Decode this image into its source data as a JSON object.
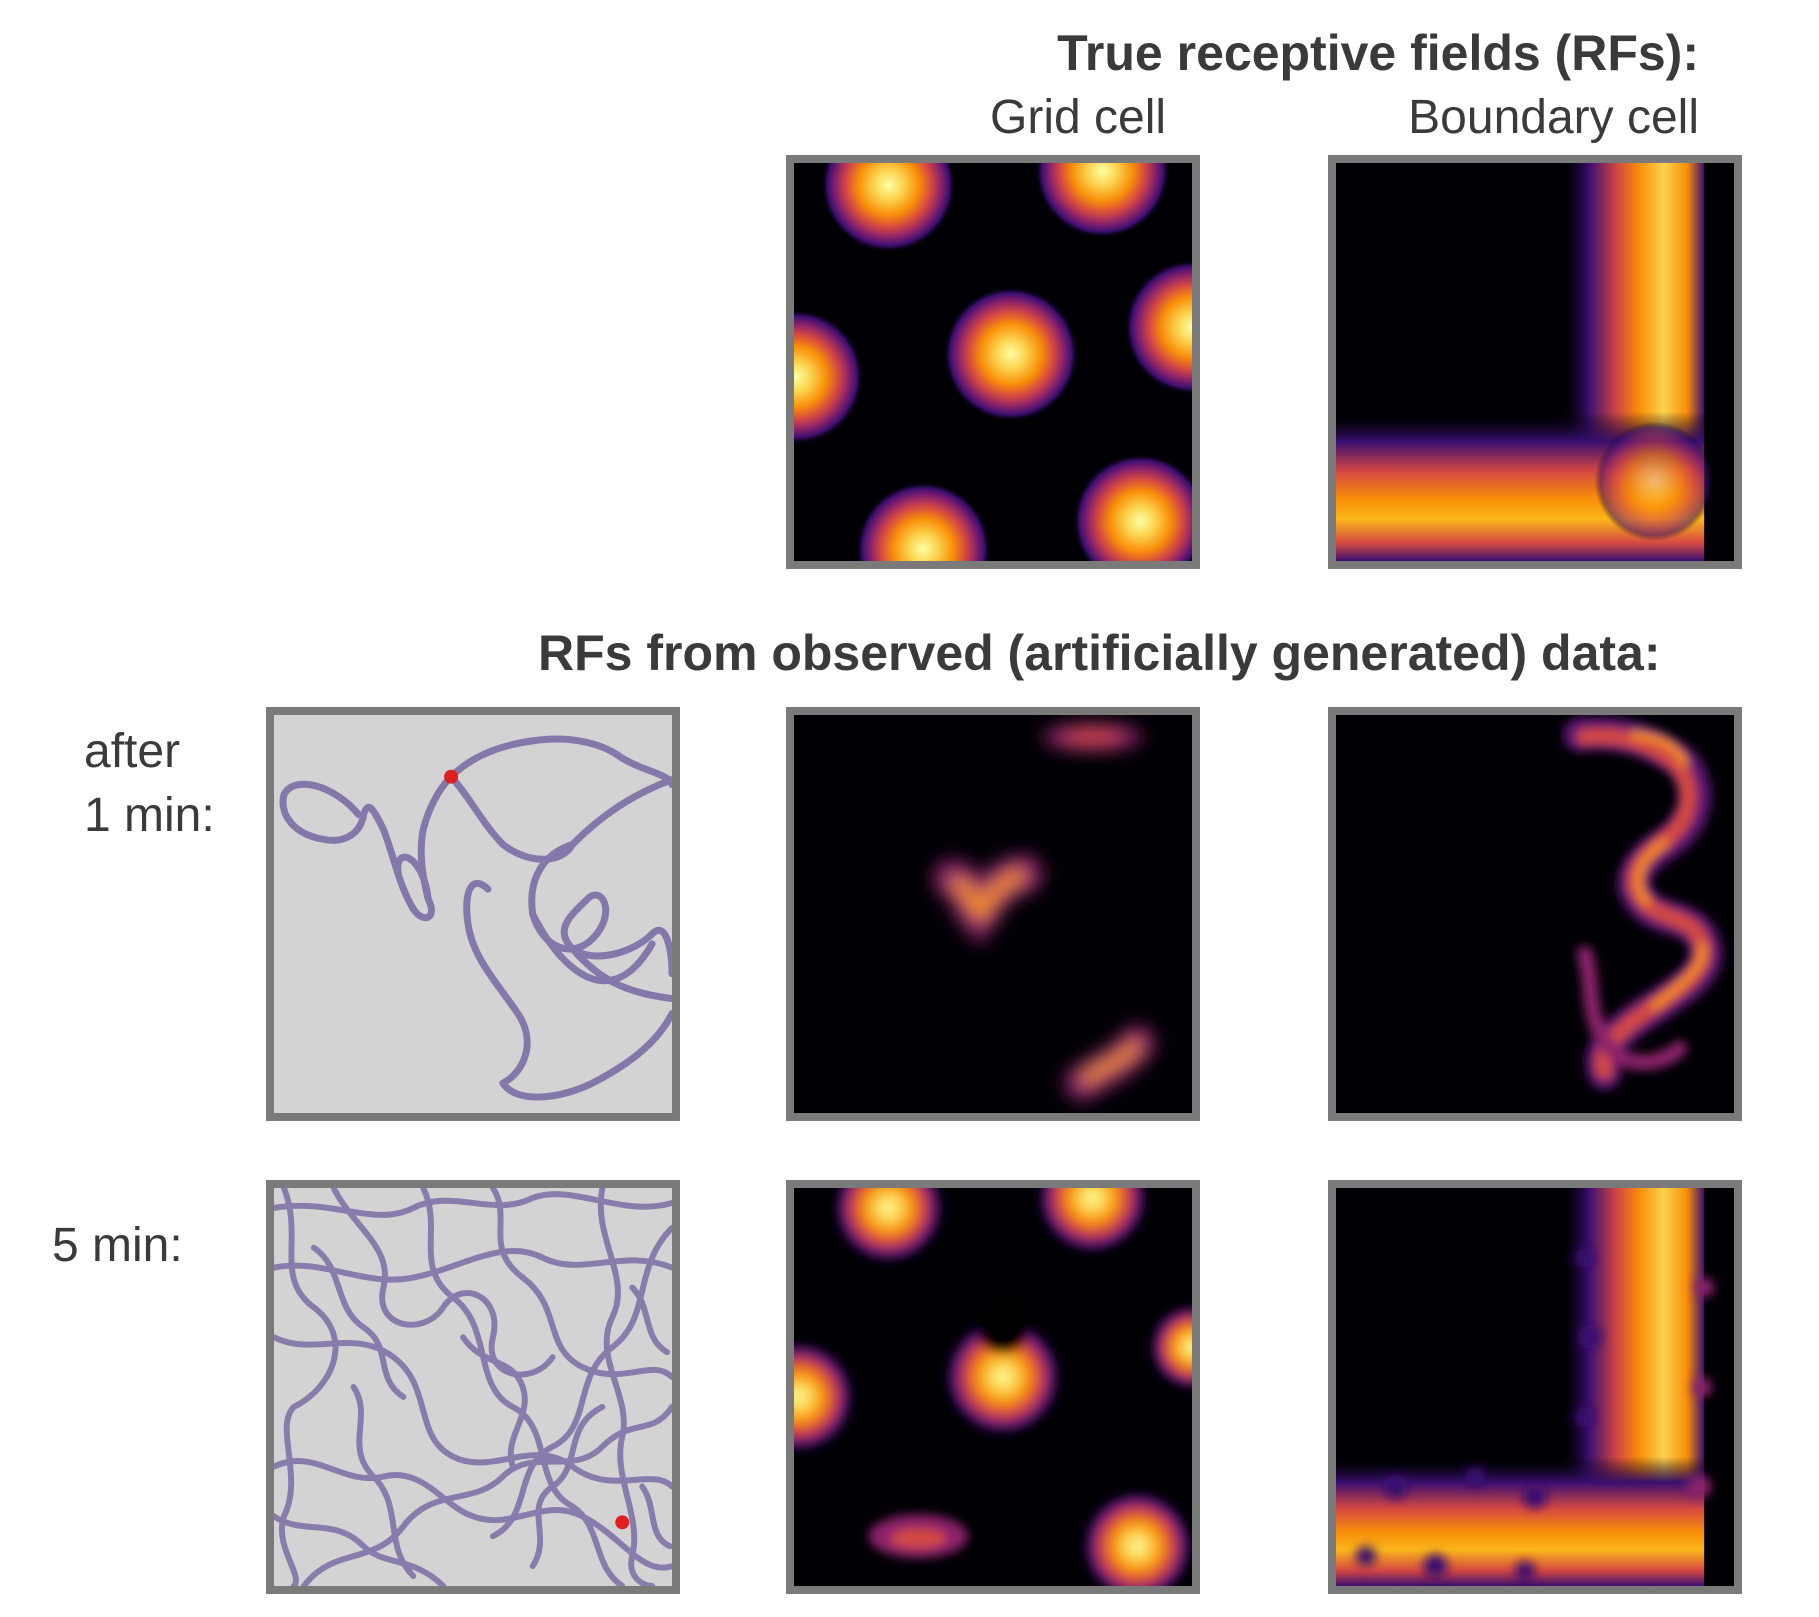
{
  "header": {
    "true_title": "True receptive fields (RFs):",
    "col_grid": "Grid cell",
    "col_boundary": "Boundary cell",
    "observed_title": "RFs from observed (artificially generated) data:"
  },
  "rows": {
    "row1_line1": "after",
    "row1_line2": "1 min:",
    "row2_label": "5 min:"
  },
  "colors": {
    "panel_border": "#7a7a7a",
    "trajectory": "#7b6ea6",
    "trajectory_bg": "#d3d3d3",
    "current_position": "#e02020",
    "heatmap_background": "#000004"
  }
}
